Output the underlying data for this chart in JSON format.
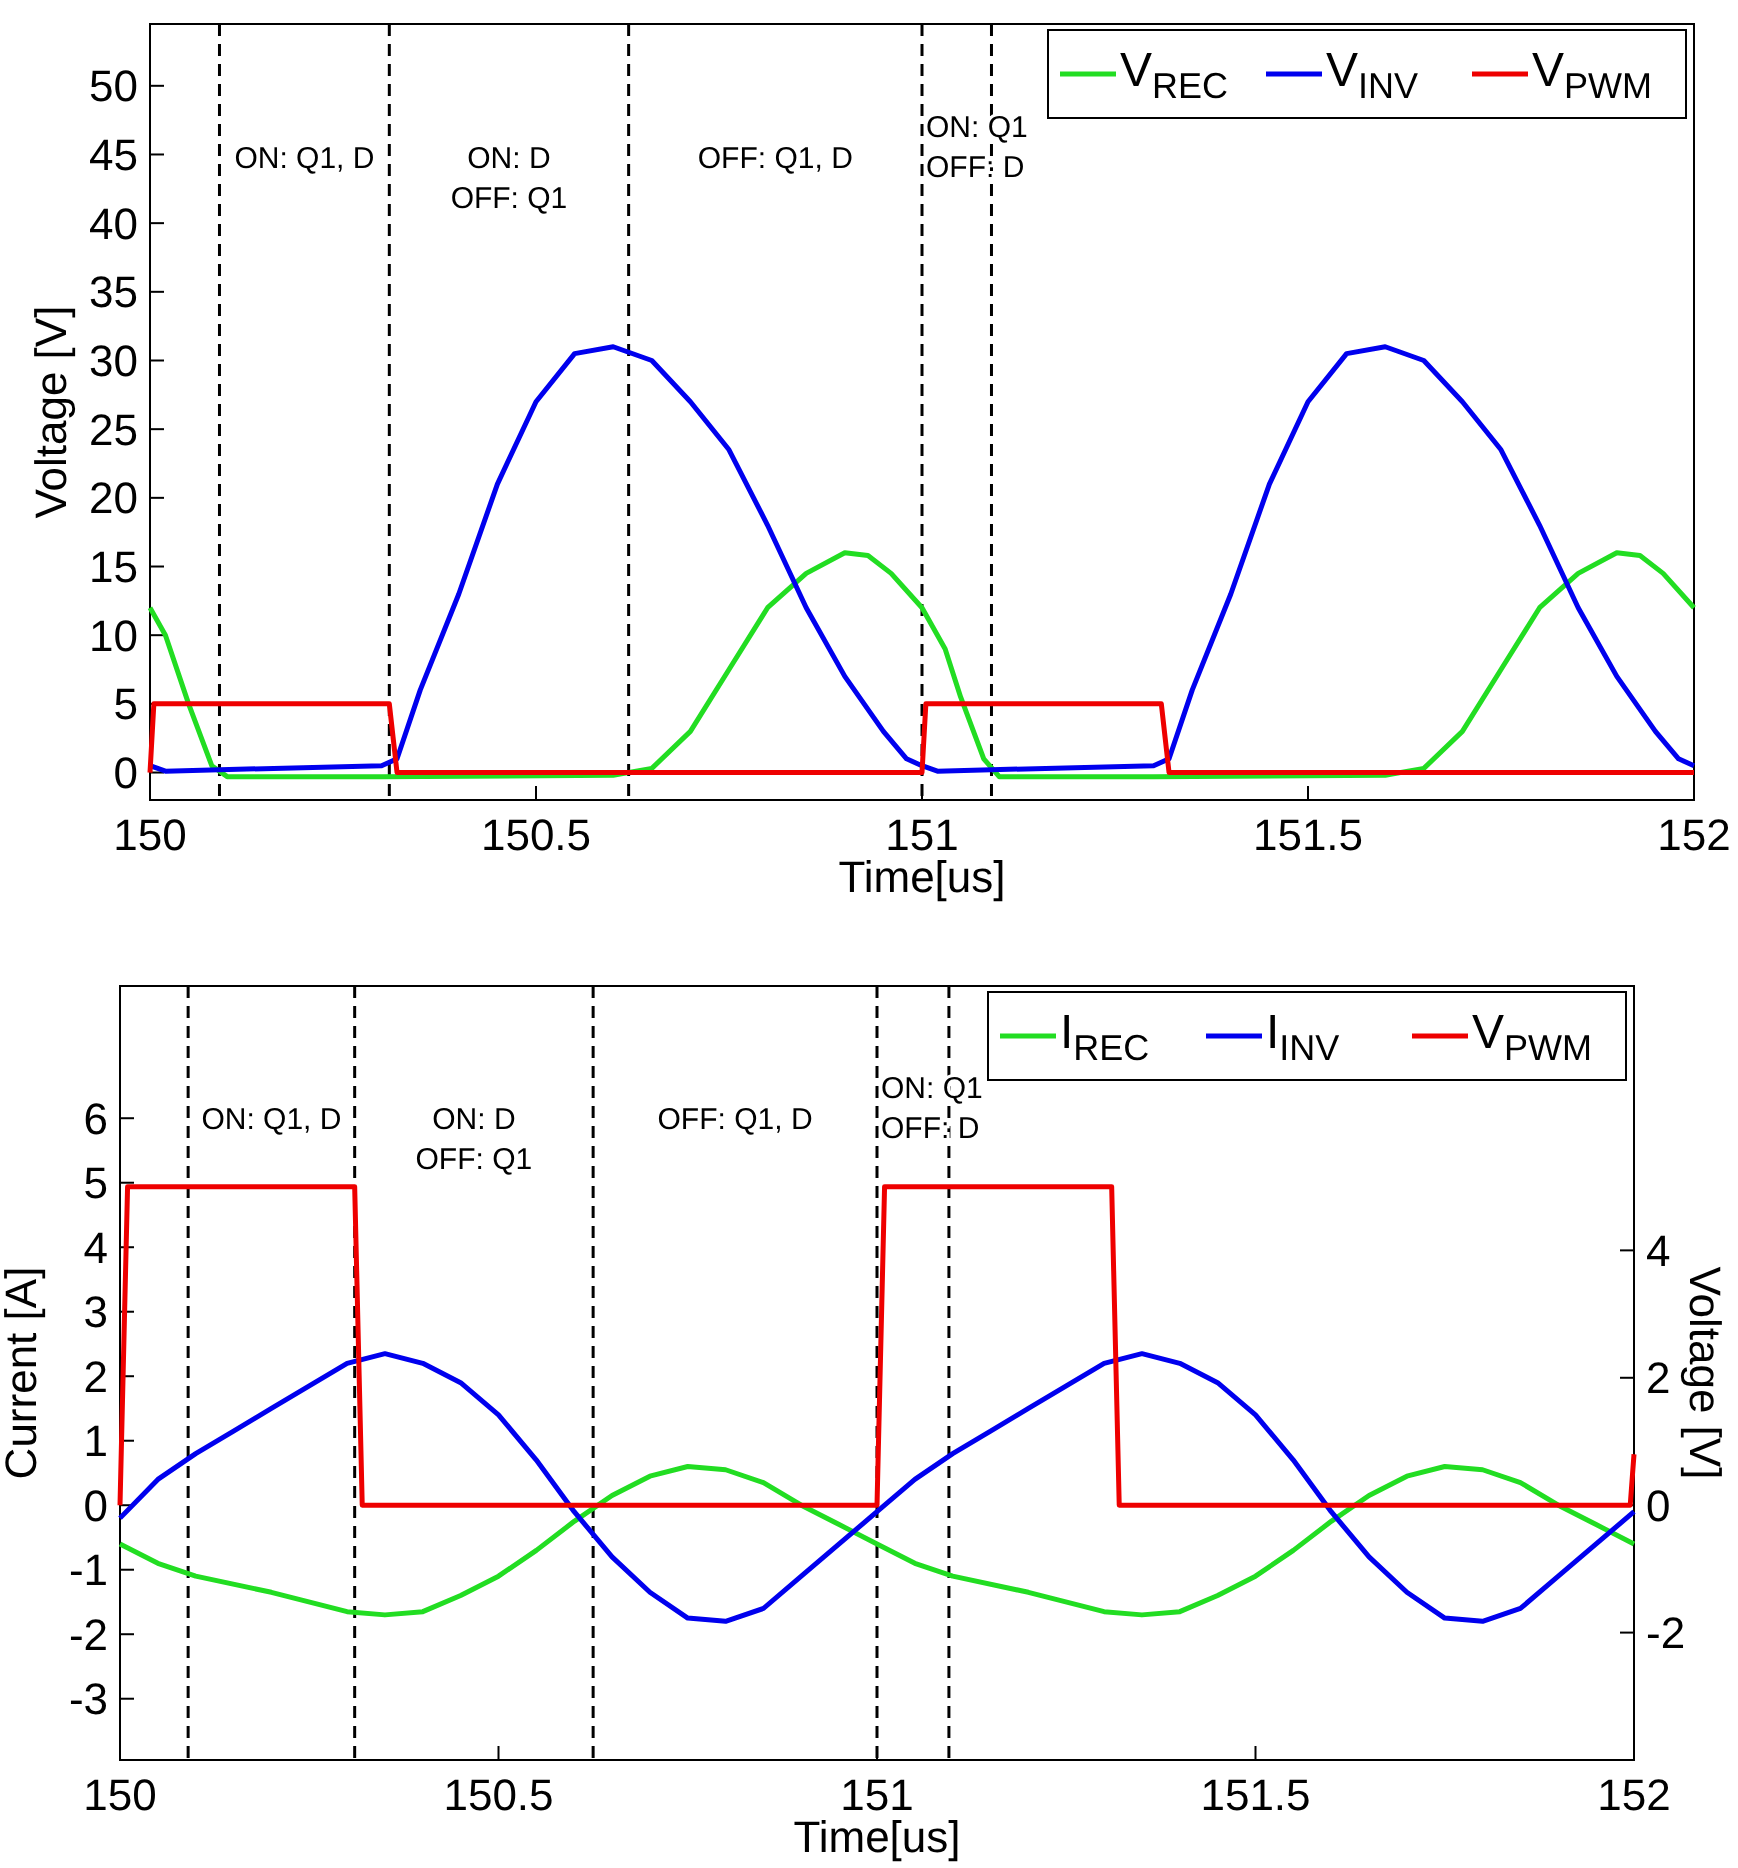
{
  "chart_data": [
    {
      "type": "line",
      "xlabel": "Time[us]",
      "ylabel": "Voltage [V]",
      "xlim": [
        150,
        152
      ],
      "ylim": [
        -2,
        54.5
      ],
      "xticks": [
        150,
        150.5,
        151,
        151.5,
        152
      ],
      "yticks": [
        0,
        5,
        10,
        15,
        20,
        25,
        30,
        35,
        40,
        45,
        50
      ],
      "legend": "top right",
      "grid": false,
      "series": [
        {
          "name": "V$_{REC}$",
          "color": "#22dd22",
          "x": [
            150,
            150.02,
            150.05,
            150.08,
            150.1,
            150.3,
            150.6,
            150.65,
            150.7,
            150.75,
            150.8,
            150.85,
            150.9,
            150.93,
            150.96,
            151,
            151.03,
            151.05,
            151.08,
            151.1,
            151.3,
            151.6,
            151.65,
            151.7,
            151.75,
            151.8,
            151.85,
            151.9,
            151.93,
            151.96,
            152
          ],
          "values": [
            12,
            10,
            5,
            0.5,
            -0.3,
            -0.3,
            -0.2,
            0.3,
            3,
            7.5,
            12,
            14.5,
            16,
            15.8,
            14.5,
            12,
            9,
            5.5,
            1,
            -0.3,
            -0.3,
            -0.2,
            0.3,
            3,
            7.5,
            12,
            14.5,
            16,
            15.8,
            14.5,
            12
          ]
        },
        {
          "name": "V$_{INV}$",
          "color": "#0000ee",
          "x": [
            150,
            150.02,
            150.3,
            150.32,
            150.35,
            150.4,
            150.45,
            150.5,
            150.55,
            150.6,
            150.65,
            150.7,
            150.75,
            150.8,
            150.85,
            150.9,
            150.95,
            150.98,
            151,
            151.02,
            151.3,
            151.32,
            151.35,
            151.4,
            151.45,
            151.5,
            151.55,
            151.6,
            151.65,
            151.7,
            151.75,
            151.8,
            151.85,
            151.9,
            151.95,
            151.98,
            152
          ],
          "values": [
            0.5,
            0.1,
            0.5,
            1,
            6,
            13,
            21,
            27,
            30.5,
            31,
            30,
            27,
            23.5,
            18,
            12,
            7,
            3,
            1,
            0.5,
            0.1,
            0.5,
            1,
            6,
            13,
            21,
            27,
            30.5,
            31,
            30,
            27,
            23.5,
            18,
            12,
            7,
            3,
            1,
            0.5
          ]
        },
        {
          "name": "V$_{PWM}$",
          "color": "#ee0000",
          "x": [
            150,
            150.005,
            150.31,
            150.32,
            151,
            151.005,
            151.31,
            151.32,
            152
          ],
          "values": [
            0,
            5,
            5,
            0,
            0,
            5,
            5,
            0,
            0
          ]
        }
      ],
      "ref_lines": [
        {
          "axis": "x",
          "value": 150.09,
          "line_style": "dashed",
          "color": "#000000"
        },
        {
          "axis": "x",
          "value": 150.31,
          "line_style": "dashed",
          "color": "#000000"
        },
        {
          "axis": "x",
          "value": 150.62,
          "line_style": "dashed",
          "color": "#000000"
        },
        {
          "axis": "x",
          "value": 151.0,
          "line_style": "dashed",
          "color": "#000000"
        },
        {
          "axis": "x",
          "value": 151.09,
          "line_style": "dashed",
          "color": "#000000"
        }
      ],
      "annotations": [
        "ON: Q1, D",
        "ON: D\nOFF: Q1",
        "OFF: Q1, D",
        "ON: Q1\nOFF: D"
      ]
    },
    {
      "type": "line",
      "xlabel": "Time[us]",
      "ylabel": "Current [A]",
      "y2label": "Voltage [V]",
      "xlim": [
        150,
        152
      ],
      "ylim": [
        -3.95,
        8.05
      ],
      "y2lim": [
        -4,
        8.15
      ],
      "xticks": [
        150,
        150.5,
        151,
        151.5,
        152
      ],
      "yticks": [
        -3,
        -2,
        -1,
        0,
        1,
        2,
        3,
        4,
        5,
        6
      ],
      "y2ticks": [
        -2,
        0,
        2,
        4
      ],
      "legend": "top right",
      "grid": false,
      "series": [
        {
          "name": "I$_{REC}$",
          "color": "#22dd22",
          "x": [
            150,
            150.05,
            150.1,
            150.2,
            150.3,
            150.35,
            150.4,
            150.45,
            150.5,
            150.55,
            150.6,
            150.65,
            150.7,
            150.75,
            150.8,
            150.85,
            150.9,
            150.95,
            151,
            151.05,
            151.1,
            151.2,
            151.3,
            151.35,
            151.4,
            151.45,
            151.5,
            151.55,
            151.6,
            151.65,
            151.7,
            151.75,
            151.8,
            151.85,
            151.9,
            151.95,
            152
          ],
          "values": [
            -0.6,
            -0.9,
            -1.1,
            -1.35,
            -1.65,
            -1.7,
            -1.65,
            -1.4,
            -1.1,
            -0.7,
            -0.25,
            0.15,
            0.45,
            0.6,
            0.55,
            0.35,
            0,
            -0.3,
            -0.6,
            -0.9,
            -1.1,
            -1.35,
            -1.65,
            -1.7,
            -1.65,
            -1.4,
            -1.1,
            -0.7,
            -0.25,
            0.15,
            0.45,
            0.6,
            0.55,
            0.35,
            0,
            -0.3,
            -0.6
          ]
        },
        {
          "name": "I$_{INV}$",
          "color": "#0000ee",
          "x": [
            150,
            150.05,
            150.1,
            150.15,
            150.2,
            150.25,
            150.3,
            150.35,
            150.4,
            150.45,
            150.5,
            150.55,
            150.6,
            150.65,
            150.7,
            150.75,
            150.8,
            150.85,
            150.9,
            150.95,
            151,
            151.05,
            151.1,
            151.15,
            151.2,
            151.25,
            151.3,
            151.35,
            151.4,
            151.45,
            151.5,
            151.55,
            151.6,
            151.65,
            151.7,
            151.75,
            151.8,
            151.85,
            151.9,
            151.95,
            152
          ],
          "values": [
            -0.2,
            0.4,
            0.8,
            1.15,
            1.5,
            1.85,
            2.2,
            2.35,
            2.2,
            1.9,
            1.4,
            0.7,
            -0.1,
            -0.8,
            -1.35,
            -1.75,
            -1.8,
            -1.6,
            -1.1,
            -0.6,
            -0.1,
            0.4,
            0.8,
            1.15,
            1.5,
            1.85,
            2.2,
            2.35,
            2.2,
            1.9,
            1.4,
            0.7,
            -0.1,
            -0.8,
            -1.35,
            -1.75,
            -1.8,
            -1.6,
            -1.1,
            -0.6,
            -0.1
          ]
        },
        {
          "name": "V$_{PWM}$",
          "color": "#ee0000",
          "axis": "y2",
          "x": [
            150,
            150.01,
            150.31,
            150.32,
            151,
            151.01,
            151.31,
            151.32,
            151.995,
            152
          ],
          "values": [
            0,
            5,
            5,
            0,
            0,
            5,
            5,
            0,
            0,
            0.8
          ]
        }
      ],
      "ref_lines": [
        {
          "axis": "x",
          "value": 150.09,
          "line_style": "dashed",
          "color": "#000000"
        },
        {
          "axis": "x",
          "value": 150.31,
          "line_style": "dashed",
          "color": "#000000"
        },
        {
          "axis": "x",
          "value": 150.625,
          "line_style": "dashed",
          "color": "#000000"
        },
        {
          "axis": "x",
          "value": 151.0,
          "line_style": "dashed",
          "color": "#000000"
        },
        {
          "axis": "x",
          "value": 151.095,
          "line_style": "dashed",
          "color": "#000000"
        }
      ],
      "annotations": [
        "ON: Q1, D",
        "ON: D\nOFF: Q1",
        "OFF: Q1, D",
        "ON: Q1\nOFF: D"
      ]
    }
  ]
}
